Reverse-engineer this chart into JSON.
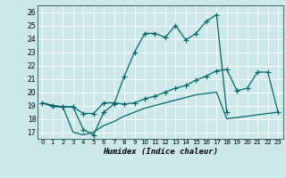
{
  "title": "",
  "xlabel": "Humidex (Indice chaleur)",
  "ylabel": "",
  "bg_color": "#cce8e8",
  "grid_color": "#b0d0d0",
  "line_color": "#006666",
  "x": [
    0,
    1,
    2,
    3,
    4,
    5,
    6,
    7,
    8,
    9,
    10,
    11,
    12,
    13,
    14,
    15,
    16,
    17,
    18,
    19,
    20,
    21,
    22,
    23
  ],
  "line1": [
    19.2,
    19.0,
    18.9,
    18.9,
    17.2,
    16.8,
    18.5,
    19.1,
    21.2,
    23.0,
    24.4,
    24.4,
    24.1,
    25.0,
    23.9,
    24.4,
    25.3,
    25.8,
    18.5,
    null,
    null,
    null,
    null,
    null
  ],
  "line2": [
    19.2,
    19.0,
    18.9,
    18.9,
    18.4,
    18.4,
    19.2,
    19.2,
    19.1,
    19.2,
    19.5,
    19.7,
    20.0,
    20.3,
    20.5,
    20.9,
    21.2,
    21.6,
    21.7,
    20.1,
    20.3,
    21.5,
    21.5,
    18.5
  ],
  "line3": [
    19.2,
    18.9,
    18.9,
    17.0,
    16.8,
    17.0,
    17.5,
    17.8,
    18.2,
    18.5,
    18.8,
    19.0,
    19.2,
    19.4,
    19.6,
    19.8,
    19.9,
    20.0,
    18.0,
    18.1,
    18.2,
    18.3,
    18.4,
    18.5
  ],
  "ylim": [
    16.5,
    26.5
  ],
  "xlim": [
    -0.5,
    23.5
  ],
  "yticks": [
    17,
    18,
    19,
    20,
    21,
    22,
    23,
    24,
    25,
    26
  ],
  "xticks": [
    0,
    1,
    2,
    3,
    4,
    5,
    6,
    7,
    8,
    9,
    10,
    11,
    12,
    13,
    14,
    15,
    16,
    17,
    18,
    19,
    20,
    21,
    22,
    23
  ],
  "xtick_labels": [
    "0",
    "1",
    "2",
    "3",
    "4",
    "5",
    "6",
    "7",
    "8",
    "9",
    "10",
    "11",
    "12",
    "13",
    "14",
    "15",
    "16",
    "17",
    "18",
    "19",
    "20",
    "21",
    "22",
    "23"
  ]
}
